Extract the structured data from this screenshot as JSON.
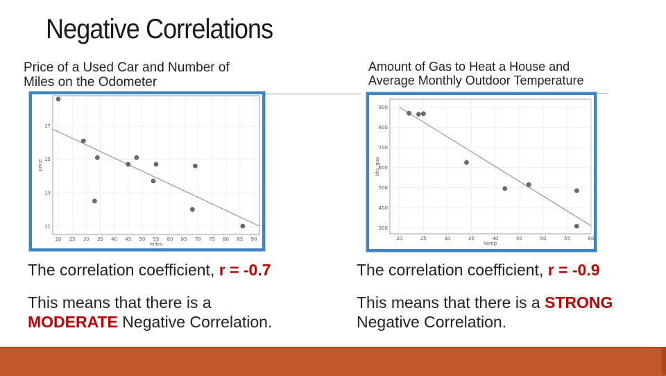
{
  "slide": {
    "title": "Negative Correlations"
  },
  "left": {
    "caption_line1": "Price of a Used Car and Number of",
    "caption_line2": "Miles on the Odometer",
    "coef_prefix": "The correlation coefficient, ",
    "coef_value": "r = -0.7",
    "meaning_prefix": "This means that there is a ",
    "meaning_strength": "MODERATE",
    "meaning_suffix": " Negative Correlation."
  },
  "right": {
    "caption_line1": "Amount of Gas to Heat a House and",
    "caption_line2": "Average Monthly Outdoor Temperature",
    "coef_prefix": "The correlation coefficient, ",
    "coef_value": "r = -0.9",
    "meaning_prefix": "This means that there is a ",
    "meaning_strength": "STRONG",
    "meaning_suffix": "Negative Correlation."
  },
  "colors": {
    "frame": "#3d86c6",
    "point": "#6b6b6b",
    "trendline": "#7b82c4",
    "footer": "#c0582b",
    "emphasis": "#c00000"
  },
  "chart_data": [
    {
      "type": "scatter",
      "xlabel": "miles",
      "ylabel": "price",
      "xlim": [
        18,
        92
      ],
      "ylim": [
        10.5,
        18.8
      ],
      "xticks": [
        20,
        25,
        30,
        35,
        40,
        45,
        50,
        55,
        60,
        65,
        70,
        75,
        80,
        85,
        90
      ],
      "yticks": [
        11,
        13,
        15,
        17
      ],
      "grid": true,
      "points": [
        {
          "x": 20,
          "y": 18.6
        },
        {
          "x": 29,
          "y": 16.1
        },
        {
          "x": 34,
          "y": 15.1
        },
        {
          "x": 33,
          "y": 12.5
        },
        {
          "x": 45,
          "y": 14.7
        },
        {
          "x": 48,
          "y": 15.1
        },
        {
          "x": 55,
          "y": 14.7
        },
        {
          "x": 54,
          "y": 13.7
        },
        {
          "x": 69,
          "y": 14.6
        },
        {
          "x": 68,
          "y": 12.0
        },
        {
          "x": 86,
          "y": 11.0
        }
      ],
      "trendline": [
        {
          "x": 18,
          "y": 16.8
        },
        {
          "x": 92,
          "y": 11.0
        }
      ]
    },
    {
      "type": "scatter",
      "xlabel": "temp",
      "ylabel": "btu_gas",
      "xlim": [
        18,
        60
      ],
      "ylim": [
        270,
        940
      ],
      "xticks": [
        20,
        25,
        30,
        35,
        40,
        45,
        50,
        55,
        60
      ],
      "yticks": [
        300,
        400,
        500,
        600,
        700,
        800,
        900
      ],
      "grid": true,
      "points": [
        {
          "x": 22,
          "y": 870
        },
        {
          "x": 24,
          "y": 865
        },
        {
          "x": 25,
          "y": 868
        },
        {
          "x": 34,
          "y": 625
        },
        {
          "x": 42,
          "y": 495
        },
        {
          "x": 47,
          "y": 515
        },
        {
          "x": 57,
          "y": 485
        },
        {
          "x": 57,
          "y": 308
        }
      ],
      "trendline": [
        {
          "x": 20,
          "y": 900
        },
        {
          "x": 60,
          "y": 310
        }
      ]
    }
  ]
}
